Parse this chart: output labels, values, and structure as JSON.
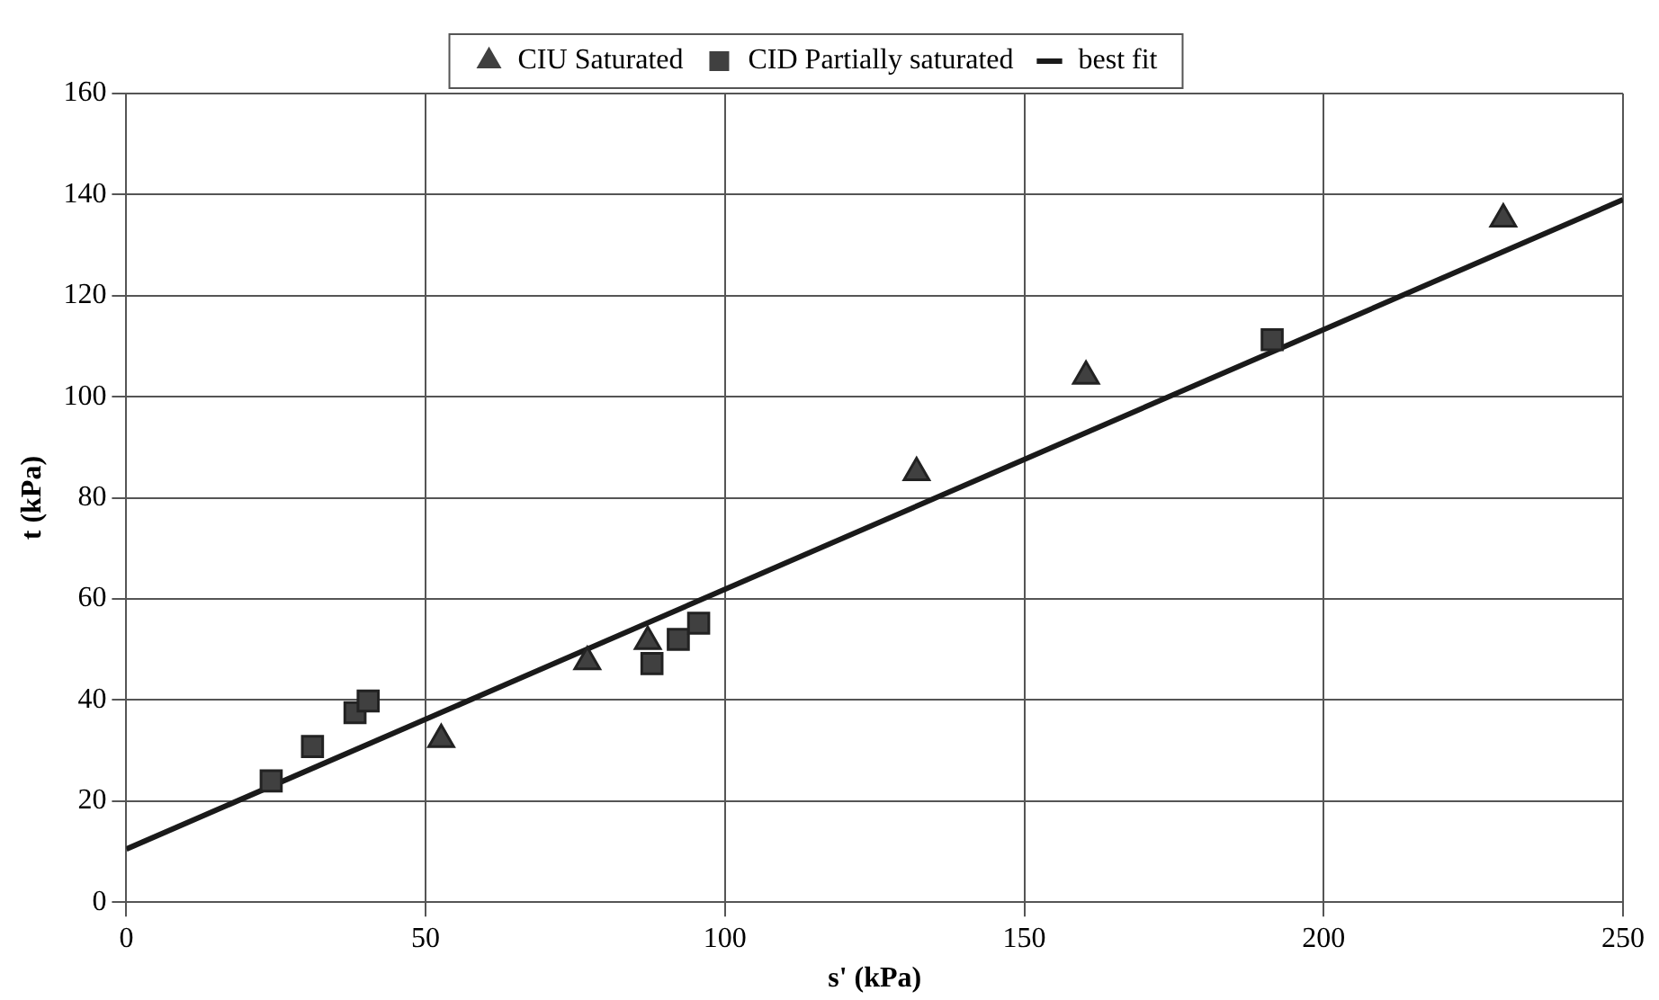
{
  "chart_data": {
    "type": "scatter",
    "xlabel": "s' (kPa)",
    "ylabel": "t (kPa)",
    "series": [
      {
        "name": "CIU Saturated",
        "color": "#404040",
        "marker": "triangle",
        "x": [
          52.6,
          77,
          87.1,
          132,
          160.3,
          230
        ],
        "values": [
          32.2,
          47.6,
          51.6,
          85,
          104.1,
          135.2
        ]
      },
      {
        "name": "CID Partially saturated",
        "color": "#404040",
        "marker": "square",
        "x": [
          24.2,
          31.1,
          38.2,
          40.4,
          87.8,
          92.2,
          95.6,
          191.4
        ],
        "values": [
          24,
          30.8,
          37.5,
          39.8,
          47.2,
          52,
          55.2,
          111.3
        ]
      },
      {
        "name": "best fit",
        "type": "line",
        "color": "#1a1a1a",
        "marker": "none",
        "x": [
          0,
          250
        ],
        "values": [
          10.5,
          139
        ]
      }
    ],
    "xlim": [
      0,
      250
    ],
    "xticks": [
      0,
      50,
      100,
      150,
      200,
      250
    ],
    "ylim": [
      0,
      160
    ],
    "yticks": [
      0,
      20,
      40,
      60,
      80,
      100,
      120,
      140,
      160
    ],
    "grid": true,
    "legend": "top"
  }
}
